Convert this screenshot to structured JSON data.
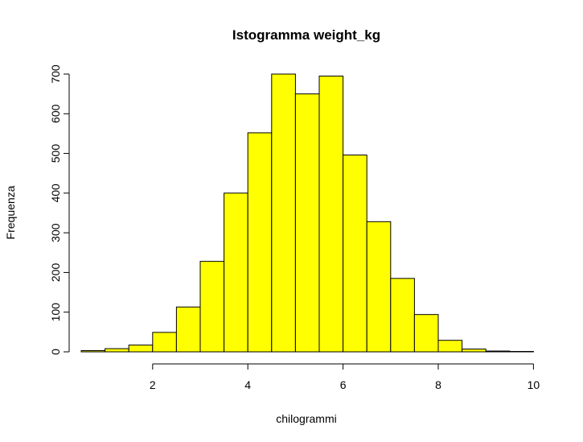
{
  "chart_data": {
    "type": "bar",
    "title": "Istogramma weight_kg",
    "xlabel": "chilogrammi",
    "ylabel": "Frequenza",
    "bar_color": "#FFFF00",
    "bin_edges": [
      0.5,
      1.0,
      1.5,
      2.0,
      2.5,
      3.0,
      3.5,
      4.0,
      4.5,
      5.0,
      5.5,
      6.0,
      6.5,
      7.0,
      7.5,
      8.0,
      8.5,
      9.0,
      9.5,
      10.0
    ],
    "values": [
      3,
      8,
      17,
      49,
      113,
      228,
      400,
      552,
      700,
      650,
      695,
      496,
      328,
      185,
      94,
      29,
      7,
      2,
      1
    ],
    "x_ticks": [
      2,
      4,
      6,
      8,
      10
    ],
    "y_ticks": [
      0,
      100,
      200,
      300,
      400,
      500,
      600,
      700
    ],
    "xlim": [
      0.5,
      10.0
    ],
    "ylim": [
      0,
      700
    ],
    "grid": false,
    "legend": "none"
  }
}
